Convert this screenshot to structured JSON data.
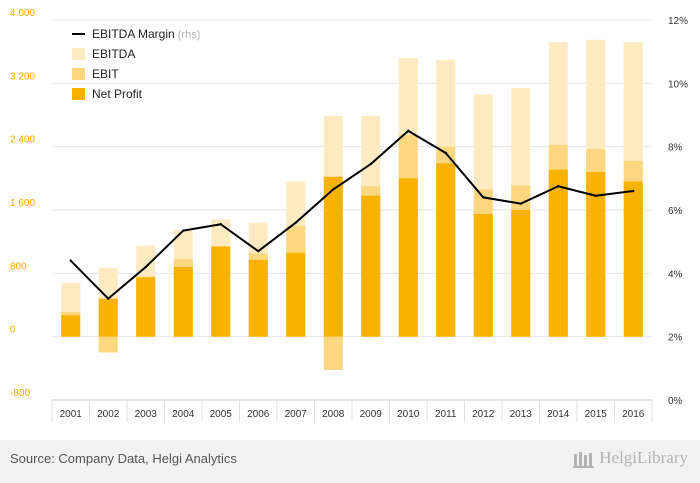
{
  "chart_data": {
    "type": "bar",
    "categories": [
      "2001",
      "2002",
      "2003",
      "2004",
      "2005",
      "2006",
      "2007",
      "2008",
      "2009",
      "2010",
      "2011",
      "2012",
      "2013",
      "2014",
      "2015",
      "2016"
    ],
    "series": [
      {
        "name": "EBITDA",
        "kind": "bar",
        "axis": "left",
        "color": "#ffeac2",
        "values": [
          680,
          870,
          1150,
          1340,
          1480,
          1440,
          1960,
          2790,
          2790,
          3520,
          3500,
          3060,
          3140,
          3720,
          3750,
          3720
        ]
      },
      {
        "name": "EBIT",
        "kind": "bar",
        "axis": "left",
        "color": "#fdd77f",
        "values": [
          310,
          -200,
          760,
          980,
          1130,
          1050,
          1400,
          -420,
          1900,
          2550,
          2400,
          1860,
          1910,
          2420,
          2370,
          2220
        ]
      },
      {
        "name": "Net Profit",
        "kind": "bar",
        "axis": "left",
        "color": "#f9b200",
        "values": [
          270,
          480,
          750,
          880,
          1140,
          970,
          1060,
          2020,
          1780,
          2000,
          2190,
          1550,
          1600,
          2110,
          2080,
          1960
        ]
      },
      {
        "name": "EBITDA Margin",
        "kind": "line",
        "axis": "right",
        "color": "#000000",
        "values": [
          4.4,
          3.2,
          4.2,
          5.35,
          5.55,
          4.7,
          5.6,
          6.65,
          7.45,
          8.5,
          7.8,
          6.4,
          6.2,
          6.75,
          6.45,
          6.6
        ]
      }
    ],
    "legend": [
      {
        "label": "EBITDA Margin",
        "suffix": "(rhs)",
        "color": "#000000",
        "kind": "line"
      },
      {
        "label": "EBITDA",
        "color": "#ffeac2",
        "kind": "box"
      },
      {
        "label": "EBIT",
        "color": "#fdd77f",
        "kind": "box"
      },
      {
        "label": "Net Profit",
        "color": "#f9b200",
        "kind": "box"
      }
    ],
    "legend_position": "top-left",
    "y_left": {
      "min": -800,
      "max": 4000,
      "ticks": [
        -800,
        0,
        800,
        1600,
        2400,
        3200,
        4000
      ],
      "tick_labels": [
        "-800",
        "0",
        "800",
        "1 600",
        "2 400",
        "3 200",
        "4 000"
      ]
    },
    "y_right": {
      "min": 0,
      "max": 12,
      "ticks": [
        0,
        2,
        4,
        6,
        8,
        10,
        12
      ],
      "tick_labels": [
        "0%",
        "2%",
        "4%",
        "6%",
        "8%",
        "10%",
        "12%"
      ]
    },
    "grid": "horizontal",
    "tick_color": "#f0a800",
    "title": "",
    "xlabel": "",
    "ylabel": ""
  },
  "footer": {
    "source": "Source: Company Data, Helgi Analytics",
    "logo": "HelgiLibrary"
  }
}
